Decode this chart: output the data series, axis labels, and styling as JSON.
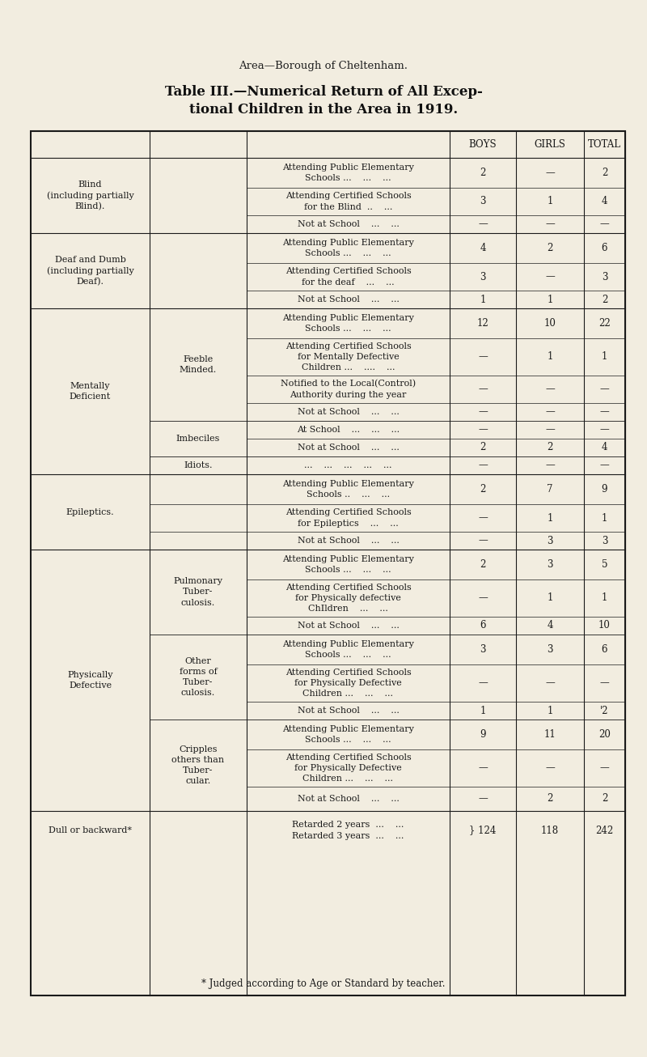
{
  "bg_color": "#f2ede0",
  "title_small": "Area—Borough of Cheltenham.",
  "title_main_line1": "Table III.—Numerical Return of All Excep-",
  "title_main_line2": "tional Children in the Area in 1919.",
  "footnote": "* Judged according to Age or Standard by teacher.",
  "col_headers": [
    "BOYS",
    "GIRLS",
    "TOTAL"
  ]
}
